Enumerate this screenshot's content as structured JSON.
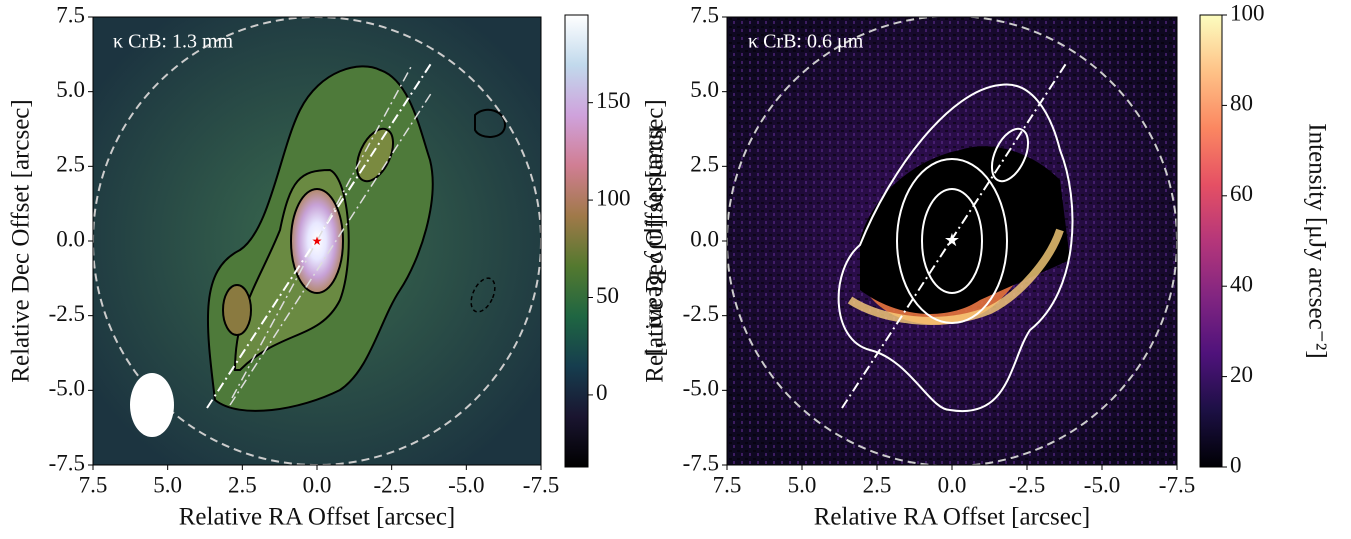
{
  "chart_data": [
    {
      "type": "heatmap",
      "annotation": "κ CrB: 1.3 mm",
      "xlabel": "Relative RA Offset [arcsec]",
      "ylabel": "Relative Dec Offset [arcsec]",
      "xlim": [
        7.5,
        -7.5
      ],
      "ylim": [
        -7.5,
        7.5
      ],
      "xticks": [
        {
          "value": 7.5,
          "label": "7.5"
        },
        {
          "value": 5,
          "label": "5.0"
        },
        {
          "value": 2.5,
          "label": "2.5"
        },
        {
          "value": 0,
          "label": "0.0"
        },
        {
          "value": -2.5,
          "label": "-2.5"
        },
        {
          "value": -5,
          "label": "-5.0"
        },
        {
          "value": -7.5,
          "label": "-7.5"
        }
      ],
      "yticks": [
        {
          "value": -7.5,
          "label": "-7.5"
        },
        {
          "value": -5,
          "label": "-5.0"
        },
        {
          "value": -2.5,
          "label": "-2.5"
        },
        {
          "value": 0,
          "label": "0.0"
        },
        {
          "value": 2.5,
          "label": "2.5"
        },
        {
          "value": 5,
          "label": "5.0"
        },
        {
          "value": 7.5,
          "label": "7.5"
        }
      ],
      "colorbar_label": "Intensity [μJy Beam⁻¹]",
      "cmap": "cubehelix",
      "clim": [
        -37,
        195
      ],
      "cticks": [
        0,
        50,
        100,
        150
      ]
    },
    {
      "type": "heatmap",
      "annotation": "κ CrB: 0.6 μm",
      "xlabel": "Relative RA Offset [arcsec]",
      "ylabel": "Relative Dec Offset [arcsec]",
      "xlim": [
        7.5,
        -7.5
      ],
      "ylim": [
        -7.5,
        7.5
      ],
      "xticks": [
        {
          "value": 7.5,
          "label": "7.5"
        },
        {
          "value": 5,
          "label": "5.0"
        },
        {
          "value": 2.5,
          "label": "2.5"
        },
        {
          "value": 0,
          "label": "0.0"
        },
        {
          "value": -2.5,
          "label": "-2.5"
        },
        {
          "value": -5,
          "label": "-5.0"
        },
        {
          "value": -7.5,
          "label": "-7.5"
        }
      ],
      "yticks": [
        {
          "value": -7.5,
          "label": "-7.5"
        },
        {
          "value": -5,
          "label": "-5.0"
        },
        {
          "value": -2.5,
          "label": "-2.5"
        },
        {
          "value": 0,
          "label": "0.0"
        },
        {
          "value": 2.5,
          "label": "2.5"
        },
        {
          "value": 5,
          "label": "5.0"
        },
        {
          "value": 7.5,
          "label": "7.5"
        }
      ],
      "colorbar_label": "Intensity [μJy arcsec⁻²]",
      "cmap": "magma",
      "clim": [
        0,
        100
      ],
      "cticks": [
        0,
        20,
        40,
        60,
        80,
        100
      ]
    }
  ]
}
